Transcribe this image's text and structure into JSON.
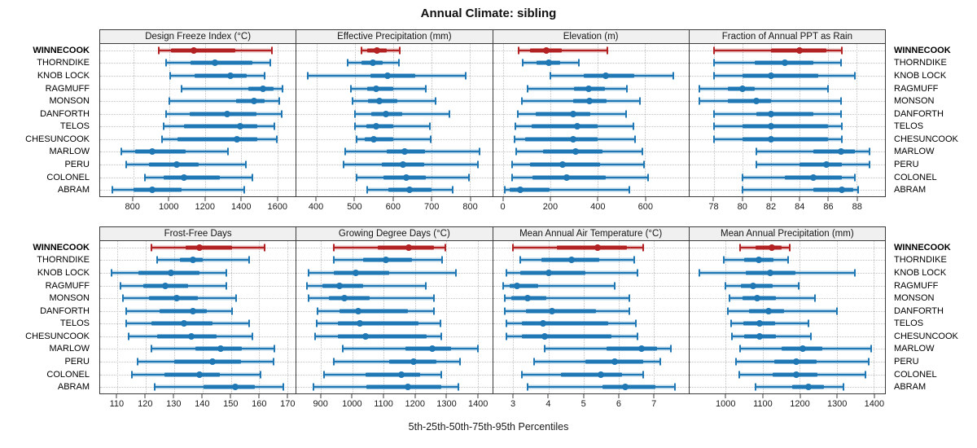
{
  "title": "Annual Climate: sibling",
  "caption": "5th-25th-50th-75th-95th Percentiles",
  "highlight_site": "WINNECOOK",
  "colors": {
    "highlight": "#b22222",
    "normal": "#1f77b4",
    "header_bg": "#f0f0f0",
    "panel_border": "#3c3c3c",
    "grid": "#c3c3c3"
  },
  "sites": [
    "WINNECOOK",
    "THORNDIKE",
    "KNOB LOCK",
    "RAGMUFF",
    "MONSON",
    "DANFORTH",
    "TELOS",
    "CHESUNCOOK",
    "MARLOW",
    "PERU",
    "COLONEL",
    "ABRAM"
  ],
  "percentile_labels": [
    "5th",
    "25th",
    "50th",
    "75th",
    "95th"
  ],
  "chart_data": [
    {
      "type": "scatter",
      "subtype": "percentile-interval-dotplot",
      "title": "Design Freeze Index (°C)",
      "xlim": [
        617,
        1702
      ],
      "xticks": [
        800,
        1000,
        1200,
        1400,
        1600
      ],
      "series": [
        {
          "name": "WINNECOOK",
          "values": [
            940,
            1010,
            1135,
            1365,
            1570
          ]
        },
        {
          "name": "THORNDIKE",
          "values": [
            985,
            1120,
            1255,
            1460,
            1560
          ]
        },
        {
          "name": "KNOB LOCK",
          "values": [
            1005,
            1140,
            1340,
            1430,
            1530
          ]
        },
        {
          "name": "RAGMUFF",
          "values": [
            1070,
            1440,
            1520,
            1580,
            1630
          ]
        },
        {
          "name": "MONSON",
          "values": [
            1000,
            1370,
            1470,
            1530,
            1610
          ]
        },
        {
          "name": "DANFORTH",
          "values": [
            985,
            1115,
            1320,
            1485,
            1625
          ]
        },
        {
          "name": "TELOS",
          "values": [
            970,
            1080,
            1395,
            1490,
            1585
          ]
        },
        {
          "name": "CHESUNCOOK",
          "values": [
            960,
            1045,
            1375,
            1490,
            1595
          ]
        },
        {
          "name": "MARLOW",
          "values": [
            735,
            810,
            905,
            1090,
            1325
          ]
        },
        {
          "name": "PERU",
          "values": [
            760,
            890,
            1040,
            1165,
            1425
          ]
        },
        {
          "name": "COLONEL",
          "values": [
            865,
            970,
            1080,
            1280,
            1460
          ]
        },
        {
          "name": "ABRAM",
          "values": [
            685,
            800,
            905,
            1070,
            1415
          ]
        }
      ]
    },
    {
      "type": "scatter",
      "subtype": "percentile-interval-dotplot",
      "title": "Effective Precipitation (mm)",
      "xlim": [
        348,
        858
      ],
      "xticks": [
        400,
        500,
        600,
        700,
        800
      ],
      "series": [
        {
          "name": "WINNECOOK",
          "values": [
            518,
            532,
            558,
            583,
            618
          ]
        },
        {
          "name": "THORNDIKE",
          "values": [
            482,
            518,
            546,
            573,
            615
          ]
        },
        {
          "name": "KNOB LOCK",
          "values": [
            377,
            540,
            585,
            658,
            790
          ]
        },
        {
          "name": "RAGMUFF",
          "values": [
            490,
            532,
            556,
            600,
            685
          ]
        },
        {
          "name": "MONSON",
          "values": [
            495,
            535,
            565,
            610,
            710
          ]
        },
        {
          "name": "DANFORTH",
          "values": [
            500,
            543,
            582,
            624,
            747
          ]
        },
        {
          "name": "TELOS",
          "values": [
            500,
            530,
            556,
            600,
            695
          ]
        },
        {
          "name": "CHESUNCOOK",
          "values": [
            505,
            525,
            550,
            600,
            698
          ]
        },
        {
          "name": "MARLOW",
          "values": [
            475,
            583,
            629,
            683,
            825
          ]
        },
        {
          "name": "PERU",
          "values": [
            470,
            570,
            625,
            680,
            820
          ]
        },
        {
          "name": "COLONEL",
          "values": [
            505,
            575,
            633,
            685,
            798
          ]
        },
        {
          "name": "ABRAM",
          "values": [
            532,
            588,
            643,
            700,
            755
          ]
        }
      ]
    },
    {
      "type": "scatter",
      "subtype": "percentile-interval-dotplot",
      "title": "Elevation (m)",
      "xlim": [
        -43,
        784
      ],
      "xticks": [
        0,
        200,
        400,
        600
      ],
      "series": [
        {
          "name": "WINNECOOK",
          "values": [
            65,
            113,
            181,
            248,
            442
          ]
        },
        {
          "name": "THORNDIKE",
          "values": [
            82,
            142,
            193,
            242,
            320
          ]
        },
        {
          "name": "KNOB LOCK",
          "values": [
            200,
            340,
            433,
            556,
            721
          ]
        },
        {
          "name": "RAGMUFF",
          "values": [
            105,
            300,
            362,
            432,
            522
          ]
        },
        {
          "name": "MONSON",
          "values": [
            80,
            295,
            365,
            438,
            578
          ]
        },
        {
          "name": "DANFORTH",
          "values": [
            62,
            136,
            296,
            367,
            520
          ]
        },
        {
          "name": "TELOS",
          "values": [
            50,
            120,
            313,
            398,
            552
          ]
        },
        {
          "name": "CHESUNCOOK",
          "values": [
            47,
            92,
            296,
            398,
            558
          ]
        },
        {
          "name": "MARLOW",
          "values": [
            56,
            170,
            307,
            419,
            589
          ]
        },
        {
          "name": "PERU",
          "values": [
            39,
            113,
            253,
            410,
            596
          ]
        },
        {
          "name": "COLONEL",
          "values": [
            39,
            124,
            267,
            433,
            613
          ]
        },
        {
          "name": "ABRAM",
          "values": [
            8,
            27,
            73,
            196,
            535
          ]
        }
      ]
    },
    {
      "type": "scatter",
      "subtype": "percentile-interval-dotplot",
      "title": "Fraction of Annual PPT as Rain",
      "xlim": [
        76.3,
        90.0
      ],
      "xticks": [
        78,
        80,
        82,
        84,
        86,
        88
      ],
      "series": [
        {
          "name": "WINNECOOK",
          "values": [
            78.0,
            82.0,
            84.0,
            85.9,
            87.0
          ]
        },
        {
          "name": "THORNDIKE",
          "values": [
            78.0,
            80.9,
            83.0,
            85.0,
            86.9
          ]
        },
        {
          "name": "KNOB LOCK",
          "values": [
            78.0,
            80.0,
            82.0,
            85.3,
            87.9
          ]
        },
        {
          "name": "RAGMUFF",
          "values": [
            77.0,
            79.0,
            80.0,
            80.9,
            86.0
          ]
        },
        {
          "name": "MONSON",
          "values": [
            77.0,
            79.0,
            81.0,
            82.0,
            86.9
          ]
        },
        {
          "name": "DANFORTH",
          "values": [
            78.0,
            81.0,
            82.0,
            85.0,
            86.9
          ]
        },
        {
          "name": "TELOS",
          "values": [
            78.0,
            80.0,
            82.0,
            86.0,
            87.0
          ]
        },
        {
          "name": "CHESUNCOOK",
          "values": [
            78.0,
            80.0,
            82.0,
            86.0,
            87.0
          ]
        },
        {
          "name": "MARLOW",
          "values": [
            81.0,
            85.0,
            86.9,
            87.9,
            88.9
          ]
        },
        {
          "name": "PERU",
          "values": [
            81.0,
            84.0,
            85.9,
            87.0,
            88.9
          ]
        },
        {
          "name": "COLONEL",
          "values": [
            80.0,
            83.0,
            85.0,
            87.0,
            87.9
          ]
        },
        {
          "name": "ABRAM",
          "values": [
            80.0,
            85.0,
            87.0,
            87.8,
            88.1
          ]
        }
      ]
    },
    {
      "type": "scatter",
      "subtype": "percentile-interval-dotplot",
      "title": "Frost-Free Days",
      "xlim": [
        103.9,
        172.9
      ],
      "xticks": [
        110,
        120,
        130,
        140,
        150,
        160,
        170
      ],
      "series": [
        {
          "name": "WINNECOOK",
          "values": [
            122,
            134,
            139,
            150.5,
            162
          ]
        },
        {
          "name": "THORNDIKE",
          "values": [
            124,
            132,
            136.5,
            140,
            156.5
          ]
        },
        {
          "name": "KNOB LOCK",
          "values": [
            108,
            117.5,
            129,
            139,
            148.5
          ]
        },
        {
          "name": "RAGMUFF",
          "values": [
            111,
            119,
            127,
            135,
            148.5
          ]
        },
        {
          "name": "MONSON",
          "values": [
            112,
            121,
            131,
            138.5,
            152
          ]
        },
        {
          "name": "DANFORTH",
          "values": [
            113,
            125,
            136.5,
            141.5,
            150.5
          ]
        },
        {
          "name": "TELOS",
          "values": [
            113,
            122,
            133.5,
            143.5,
            156.5
          ]
        },
        {
          "name": "CHESUNCOOK",
          "values": [
            114,
            124,
            136,
            145,
            157.5
          ]
        },
        {
          "name": "MARLOW",
          "values": [
            122,
            137.5,
            146.5,
            154,
            165.5
          ]
        },
        {
          "name": "PERU",
          "values": [
            117,
            130,
            143.5,
            153.5,
            165
          ]
        },
        {
          "name": "COLONEL",
          "values": [
            115,
            126.5,
            139,
            146,
            160.5
          ]
        },
        {
          "name": "ABRAM",
          "values": [
            123,
            140.5,
            151.5,
            158.5,
            168.5
          ]
        }
      ]
    },
    {
      "type": "scatter",
      "subtype": "percentile-interval-dotplot",
      "title": "Growing Degree Days (°C)",
      "xlim": [
        822,
        1446
      ],
      "xticks": [
        900,
        1000,
        1100,
        1200,
        1300,
        1400
      ],
      "series": [
        {
          "name": "WINNECOOK",
          "values": [
            940,
            1080,
            1180,
            1260,
            1297
          ]
        },
        {
          "name": "THORNDIKE",
          "values": [
            940,
            1035,
            1107,
            1190,
            1286
          ]
        },
        {
          "name": "KNOB LOCK",
          "values": [
            860,
            940,
            1010,
            1118,
            1330
          ]
        },
        {
          "name": "RAGMUFF",
          "values": [
            855,
            905,
            960,
            1035,
            1235
          ]
        },
        {
          "name": "MONSON",
          "values": [
            860,
            925,
            975,
            1055,
            1260
          ]
        },
        {
          "name": "DANFORTH",
          "values": [
            890,
            960,
            1020,
            1176,
            1260
          ]
        },
        {
          "name": "TELOS",
          "values": [
            885,
            955,
            1025,
            1210,
            1280
          ]
        },
        {
          "name": "CHESUNCOOK",
          "values": [
            880,
            955,
            1043,
            1237,
            1284
          ]
        },
        {
          "name": "MARLOW",
          "values": [
            970,
            1170,
            1255,
            1316,
            1400
          ]
        },
        {
          "name": "PERU",
          "values": [
            940,
            1118,
            1195,
            1267,
            1344
          ]
        },
        {
          "name": "COLONEL",
          "values": [
            910,
            1043,
            1157,
            1217,
            1284
          ]
        },
        {
          "name": "ABRAM",
          "values": [
            877,
            1045,
            1176,
            1283,
            1338
          ]
        }
      ]
    },
    {
      "type": "scatter",
      "subtype": "percentile-interval-dotplot",
      "title": "Mean Annual Air Temperature (°C)",
      "xlim": [
        2.42,
        8.0
      ],
      "xticks": [
        3,
        4,
        5,
        6,
        7
      ],
      "series": [
        {
          "name": "WINNECOOK",
          "values": [
            3.0,
            4.25,
            5.4,
            6.25,
            6.7
          ]
        },
        {
          "name": "THORNDIKE",
          "values": [
            3.2,
            3.8,
            4.65,
            5.45,
            6.45
          ]
        },
        {
          "name": "KNOB LOCK",
          "values": [
            2.8,
            3.2,
            4.0,
            5.05,
            6.55
          ]
        },
        {
          "name": "RAGMUFF",
          "values": [
            2.7,
            2.9,
            3.1,
            3.7,
            5.9
          ]
        },
        {
          "name": "MONSON",
          "values": [
            2.75,
            2.95,
            3.4,
            3.95,
            6.3
          ]
        },
        {
          "name": "DANFORTH",
          "values": [
            2.75,
            3.35,
            4.1,
            5.35,
            6.3
          ]
        },
        {
          "name": "TELOS",
          "values": [
            2.8,
            3.25,
            3.85,
            5.7,
            6.5
          ]
        },
        {
          "name": "CHESUNCOOK",
          "values": [
            2.8,
            3.25,
            3.9,
            5.8,
            6.55
          ]
        },
        {
          "name": "MARLOW",
          "values": [
            3.9,
            5.65,
            6.65,
            7.1,
            7.5
          ]
        },
        {
          "name": "PERU",
          "values": [
            3.6,
            5.05,
            5.9,
            6.7,
            7.2
          ]
        },
        {
          "name": "COLONEL",
          "values": [
            3.25,
            4.35,
            5.5,
            6.1,
            6.7
          ]
        },
        {
          "name": "ABRAM",
          "values": [
            3.4,
            5.55,
            6.2,
            7.05,
            7.6
          ]
        }
      ]
    },
    {
      "type": "scatter",
      "subtype": "percentile-interval-dotplot",
      "title": "Mean Annual Precipitation (mm)",
      "xlim": [
        902,
        1431
      ],
      "xticks": [
        1000,
        1100,
        1200,
        1300,
        1400
      ],
      "series": [
        {
          "name": "WINNECOOK",
          "values": [
            1040,
            1082,
            1126,
            1151,
            1173
          ]
        },
        {
          "name": "THORNDIKE",
          "values": [
            995,
            1050,
            1090,
            1130,
            1168
          ]
        },
        {
          "name": "KNOB LOCK",
          "values": [
            930,
            1055,
            1120,
            1188,
            1349
          ]
        },
        {
          "name": "RAGMUFF",
          "values": [
            1000,
            1042,
            1075,
            1127,
            1197
          ]
        },
        {
          "name": "MONSON",
          "values": [
            1010,
            1045,
            1086,
            1137,
            1241
          ]
        },
        {
          "name": "DANFORTH",
          "values": [
            1005,
            1064,
            1117,
            1157,
            1301
          ]
        },
        {
          "name": "TELOS",
          "values": [
            1014,
            1047,
            1091,
            1134,
            1224
          ]
        },
        {
          "name": "CHESUNCOOK",
          "values": [
            1018,
            1051,
            1091,
            1135,
            1230
          ]
        },
        {
          "name": "MARLOW",
          "values": [
            1038,
            1151,
            1208,
            1262,
            1393
          ]
        },
        {
          "name": "PERU",
          "values": [
            1029,
            1131,
            1190,
            1245,
            1387
          ]
        },
        {
          "name": "COLONEL",
          "values": [
            1037,
            1128,
            1192,
            1249,
            1378
          ]
        },
        {
          "name": "ABRAM",
          "values": [
            1082,
            1179,
            1223,
            1265,
            1318
          ]
        }
      ]
    }
  ]
}
